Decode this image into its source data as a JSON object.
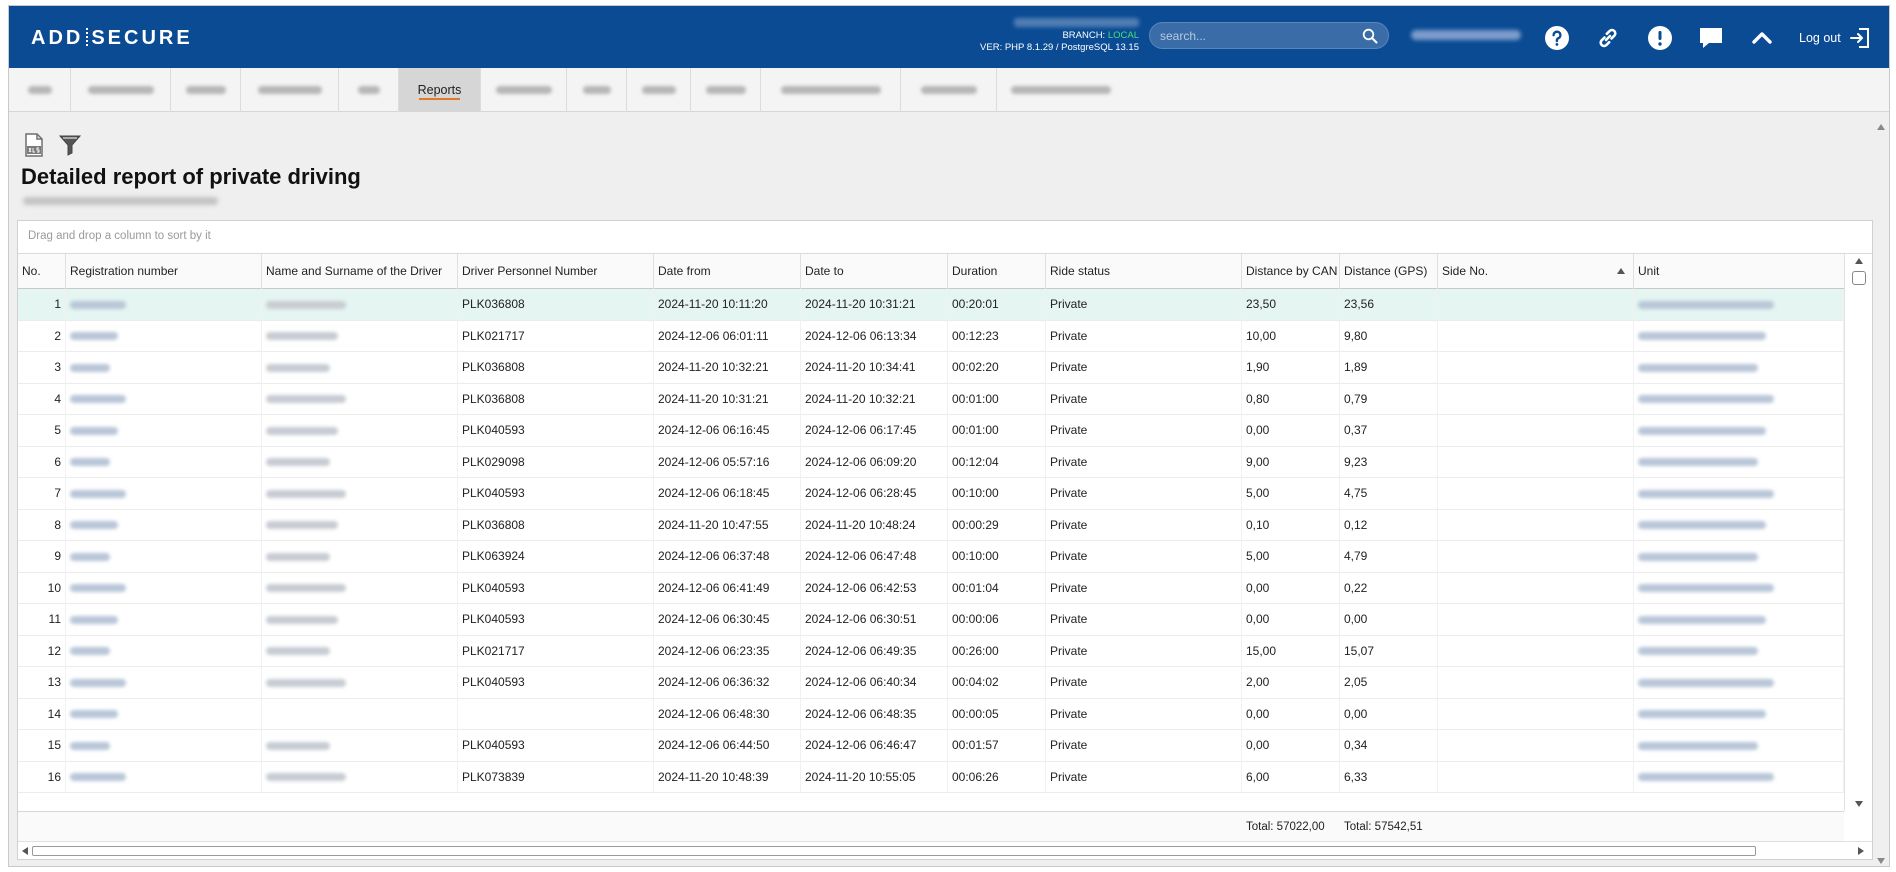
{
  "header": {
    "logo_left": "ADD",
    "logo_right": "SECURE",
    "branch_label": "BRANCH:",
    "branch_value": "LOCAL",
    "version": "VER: PHP 8.1.29 / PostgreSQL 13.15",
    "search_placeholder": "search...",
    "logout_label": "Log out",
    "icons": [
      "help-icon",
      "link-icon",
      "alert-icon",
      "chat-icon",
      "chevron-up-icon",
      "logout-icon"
    ]
  },
  "tabs": {
    "active_label": "Reports"
  },
  "page": {
    "title": "Detailed report of private driving",
    "group_hint": "Drag and drop a column to sort by it"
  },
  "table": {
    "columns": [
      "No.",
      "Registration number",
      "Name and Surname of the Driver",
      "Driver Personnel Number",
      "Date from",
      "Date to",
      "Duration",
      "Ride status",
      "Distance by CAN",
      "Distance (GPS)",
      "Side No.",
      "Unit"
    ],
    "rows": [
      {
        "no": "1",
        "personnel": "PLK036808",
        "from": "2024-11-20 10:11:20",
        "to": "2024-11-20 10:31:21",
        "duration": "00:20:01",
        "status": "Private",
        "can": "23,50",
        "gps": "23,56"
      },
      {
        "no": "2",
        "personnel": "PLK021717",
        "from": "2024-12-06 06:01:11",
        "to": "2024-12-06 06:13:34",
        "duration": "00:12:23",
        "status": "Private",
        "can": "10,00",
        "gps": "9,80"
      },
      {
        "no": "3",
        "personnel": "PLK036808",
        "from": "2024-11-20 10:32:21",
        "to": "2024-11-20 10:34:41",
        "duration": "00:02:20",
        "status": "Private",
        "can": "1,90",
        "gps": "1,89"
      },
      {
        "no": "4",
        "personnel": "PLK036808",
        "from": "2024-11-20 10:31:21",
        "to": "2024-11-20 10:32:21",
        "duration": "00:01:00",
        "status": "Private",
        "can": "0,80",
        "gps": "0,79"
      },
      {
        "no": "5",
        "personnel": "PLK040593",
        "from": "2024-12-06 06:16:45",
        "to": "2024-12-06 06:17:45",
        "duration": "00:01:00",
        "status": "Private",
        "can": "0,00",
        "gps": "0,37"
      },
      {
        "no": "6",
        "personnel": "PLK029098",
        "from": "2024-12-06 05:57:16",
        "to": "2024-12-06 06:09:20",
        "duration": "00:12:04",
        "status": "Private",
        "can": "9,00",
        "gps": "9,23"
      },
      {
        "no": "7",
        "personnel": "PLK040593",
        "from": "2024-12-06 06:18:45",
        "to": "2024-12-06 06:28:45",
        "duration": "00:10:00",
        "status": "Private",
        "can": "5,00",
        "gps": "4,75"
      },
      {
        "no": "8",
        "personnel": "PLK036808",
        "from": "2024-11-20 10:47:55",
        "to": "2024-11-20 10:48:24",
        "duration": "00:00:29",
        "status": "Private",
        "can": "0,10",
        "gps": "0,12"
      },
      {
        "no": "9",
        "personnel": "PLK063924",
        "from": "2024-12-06 06:37:48",
        "to": "2024-12-06 06:47:48",
        "duration": "00:10:00",
        "status": "Private",
        "can": "5,00",
        "gps": "4,79"
      },
      {
        "no": "10",
        "personnel": "PLK040593",
        "from": "2024-12-06 06:41:49",
        "to": "2024-12-06 06:42:53",
        "duration": "00:01:04",
        "status": "Private",
        "can": "0,00",
        "gps": "0,22"
      },
      {
        "no": "11",
        "personnel": "PLK040593",
        "from": "2024-12-06 06:30:45",
        "to": "2024-12-06 06:30:51",
        "duration": "00:00:06",
        "status": "Private",
        "can": "0,00",
        "gps": "0,00"
      },
      {
        "no": "12",
        "personnel": "PLK021717",
        "from": "2024-12-06 06:23:35",
        "to": "2024-12-06 06:49:35",
        "duration": "00:26:00",
        "status": "Private",
        "can": "15,00",
        "gps": "15,07"
      },
      {
        "no": "13",
        "personnel": "PLK040593",
        "from": "2024-12-06 06:36:32",
        "to": "2024-12-06 06:40:34",
        "duration": "00:04:02",
        "status": "Private",
        "can": "2,00",
        "gps": "2,05"
      },
      {
        "no": "14",
        "personnel": "",
        "from": "2024-12-06 06:48:30",
        "to": "2024-12-06 06:48:35",
        "duration": "00:00:05",
        "status": "Private",
        "can": "0,00",
        "gps": "0,00"
      },
      {
        "no": "15",
        "personnel": "PLK040593",
        "from": "2024-12-06 06:44:50",
        "to": "2024-12-06 06:46:47",
        "duration": "00:01:57",
        "status": "Private",
        "can": "0,00",
        "gps": "0,34"
      },
      {
        "no": "16",
        "personnel": "PLK073839",
        "from": "2024-11-20 10:48:39",
        "to": "2024-11-20 10:55:05",
        "duration": "00:06:26",
        "status": "Private",
        "can": "6,00",
        "gps": "6,33"
      }
    ],
    "total_can": "Total: 57022,00",
    "total_gps": "Total: 57542,51"
  }
}
